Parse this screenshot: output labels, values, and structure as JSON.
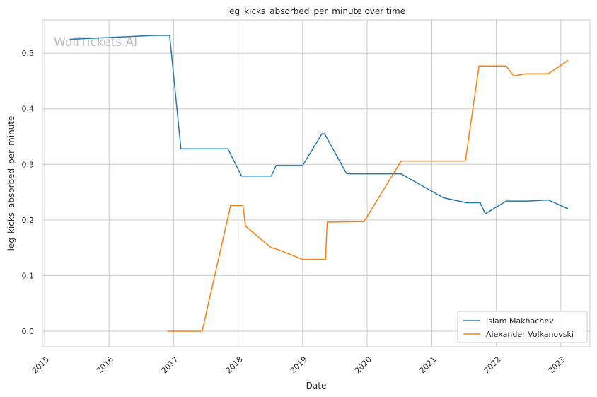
{
  "chart_data": {
    "type": "line",
    "title": "leg_kicks_absorbed_per_minute over time",
    "xlabel": "Date",
    "ylabel": "leg_kicks_absorbed_per_minute",
    "watermark": "WolfTickets.AI",
    "x_ticks": [
      "2015",
      "2016",
      "2017",
      "2018",
      "2019",
      "2020",
      "2021",
      "2022",
      "2023"
    ],
    "y_ticks": [
      "0.0",
      "0.1",
      "0.2",
      "0.3",
      "0.4",
      "0.5"
    ],
    "xlim": [
      "2014-12-20",
      "2023-06-15"
    ],
    "ylim": [
      -0.028,
      0.56
    ],
    "grid": true,
    "legend_position": "bottom-right",
    "colors": {
      "Islam Makhachev": "#1f77b4",
      "Alexander Volkanovski": "#ff7f0e",
      "grid": "#cccccc",
      "axes_border": "#cccccc"
    },
    "series": [
      {
        "name": "Islam Makhachev",
        "points": [
          [
            "2015-05-23",
            0.525
          ],
          [
            "2016-09-17",
            0.532
          ],
          [
            "2016-12-09",
            0.532
          ],
          [
            "2017-02-11",
            0.328
          ],
          [
            "2017-11-04",
            0.328
          ],
          [
            "2018-01-20",
            0.279
          ],
          [
            "2018-07-07",
            0.279
          ],
          [
            "2018-08-04",
            0.298
          ],
          [
            "2019-01-01",
            0.298
          ],
          [
            "2019-04-20",
            0.355
          ],
          [
            "2019-05-05",
            0.355
          ],
          [
            "2019-09-07",
            0.283
          ],
          [
            "2020-07-11",
            0.283
          ],
          [
            "2021-03-06",
            0.24
          ],
          [
            "2021-07-17",
            0.231
          ],
          [
            "2021-10-02",
            0.231
          ],
          [
            "2021-10-30",
            0.211
          ],
          [
            "2022-02-26",
            0.234
          ],
          [
            "2022-07-02",
            0.234
          ],
          [
            "2022-10-22",
            0.236
          ],
          [
            "2023-02-11",
            0.22
          ]
        ]
      },
      {
        "name": "Alexander Volkanovski",
        "points": [
          [
            "2016-11-26",
            0.0
          ],
          [
            "2017-06-11",
            0.0
          ],
          [
            "2017-11-19",
            0.226
          ],
          [
            "2018-01-28",
            0.226
          ],
          [
            "2018-02-11",
            0.189
          ],
          [
            "2018-07-07",
            0.15
          ],
          [
            "2018-08-04",
            0.148
          ],
          [
            "2019-01-01",
            0.129
          ],
          [
            "2019-05-10",
            0.129
          ],
          [
            "2019-05-20",
            0.196
          ],
          [
            "2019-12-14",
            0.197
          ],
          [
            "2020-07-11",
            0.306
          ],
          [
            "2021-07-10",
            0.306
          ],
          [
            "2021-09-25",
            0.477
          ],
          [
            "2022-02-26",
            0.477
          ],
          [
            "2022-04-09",
            0.459
          ],
          [
            "2022-06-18",
            0.463
          ],
          [
            "2022-10-22",
            0.463
          ],
          [
            "2023-02-11",
            0.487
          ]
        ]
      }
    ]
  }
}
